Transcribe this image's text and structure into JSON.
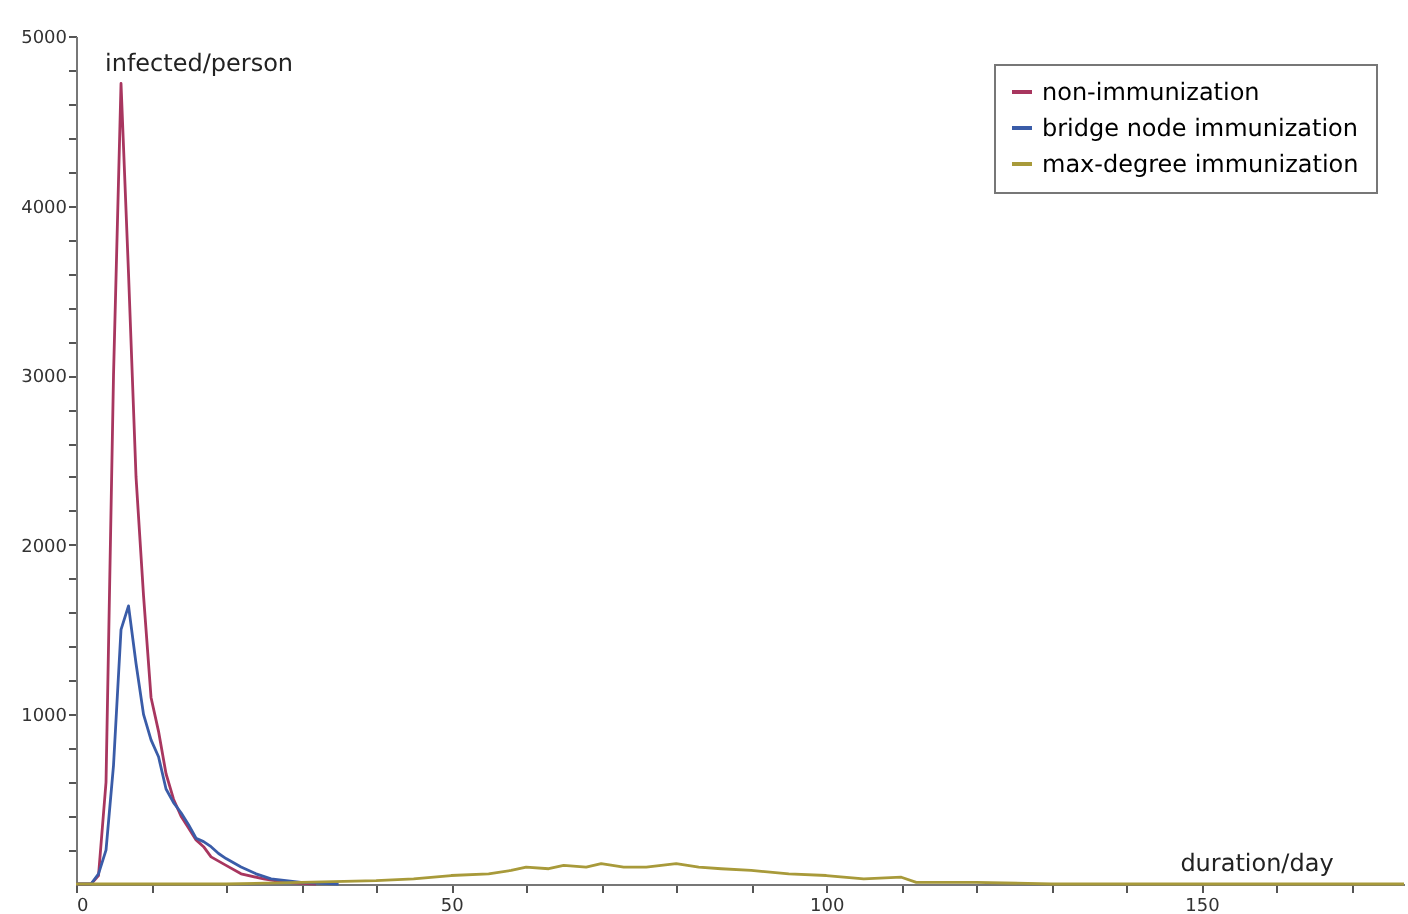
{
  "chart_data": {
    "type": "line",
    "xlabel": "duration/day",
    "ylabel": "infected/person",
    "xlim": [
      0,
      177
    ],
    "ylim": [
      0,
      5000
    ],
    "xticks": [
      0,
      {
        "value": 10,
        "label": null
      },
      {
        "value": 20,
        "label": null
      },
      {
        "value": 30,
        "label": null
      },
      {
        "value": 40,
        "label": null
      },
      50,
      {
        "value": 60,
        "label": null
      },
      {
        "value": 70,
        "label": null
      },
      {
        "value": 80,
        "label": null
      },
      {
        "value": 90,
        "label": null
      },
      100,
      {
        "value": 110,
        "label": null
      },
      {
        "value": 120,
        "label": null
      },
      {
        "value": 130,
        "label": null
      },
      {
        "value": 140,
        "label": null
      },
      150,
      {
        "value": 160,
        "label": null
      },
      {
        "value": 170,
        "label": null
      }
    ],
    "yticks": [
      {
        "value": 200,
        "label": null
      },
      {
        "value": 400,
        "label": null
      },
      {
        "value": 600,
        "label": null
      },
      {
        "value": 800,
        "label": null
      },
      1000,
      {
        "value": 1200,
        "label": null
      },
      {
        "value": 1400,
        "label": null
      },
      {
        "value": 1600,
        "label": null
      },
      {
        "value": 1800,
        "label": null
      },
      2000,
      {
        "value": 2200,
        "label": null
      },
      {
        "value": 2400,
        "label": null
      },
      {
        "value": 2600,
        "label": null
      },
      {
        "value": 2800,
        "label": null
      },
      3000,
      {
        "value": 3200,
        "label": null
      },
      {
        "value": 3400,
        "label": null
      },
      {
        "value": 3600,
        "label": null
      },
      {
        "value": 3800,
        "label": null
      },
      4000,
      {
        "value": 4200,
        "label": null
      },
      {
        "value": 4400,
        "label": null
      },
      {
        "value": 4600,
        "label": null
      },
      {
        "value": 4800,
        "label": null
      },
      5000
    ],
    "grid": false,
    "legend": "top right",
    "marker": "none",
    "line_style": "solid",
    "series": [
      {
        "name": "non-immunization",
        "color": "#a8365f",
        "x": [
          0,
          2,
          3,
          4,
          5,
          6,
          7,
          8,
          9,
          10,
          11,
          12,
          13,
          14,
          15,
          16,
          17,
          18,
          20,
          22,
          25,
          28,
          32
        ],
        "values": [
          0,
          0,
          50,
          600,
          3000,
          4720,
          3600,
          2400,
          1700,
          1100,
          900,
          650,
          500,
          400,
          330,
          260,
          220,
          160,
          110,
          60,
          30,
          10,
          0
        ]
      },
      {
        "name": "bridge node immunization",
        "color": "#3a5ca8",
        "x": [
          0,
          2,
          3,
          4,
          5,
          6,
          7,
          8,
          9,
          10,
          11,
          12,
          13,
          14,
          15,
          16,
          17,
          18,
          19,
          20,
          22,
          24,
          26,
          30,
          35
        ],
        "values": [
          0,
          0,
          60,
          200,
          700,
          1500,
          1640,
          1300,
          1000,
          850,
          750,
          560,
          480,
          420,
          350,
          270,
          250,
          220,
          180,
          150,
          100,
          60,
          30,
          10,
          0
        ]
      },
      {
        "name": "max-degree immunization",
        "color": "#a89a3a",
        "x": [
          0,
          20,
          30,
          40,
          45,
          50,
          55,
          58,
          60,
          63,
          65,
          68,
          70,
          73,
          76,
          80,
          83,
          86,
          90,
          95,
          100,
          105,
          110,
          112,
          120,
          130,
          177
        ],
        "values": [
          0,
          0,
          10,
          20,
          30,
          50,
          60,
          80,
          100,
          90,
          110,
          100,
          120,
          100,
          100,
          120,
          100,
          90,
          80,
          60,
          50,
          30,
          40,
          10,
          10,
          0,
          0
        ]
      }
    ]
  }
}
